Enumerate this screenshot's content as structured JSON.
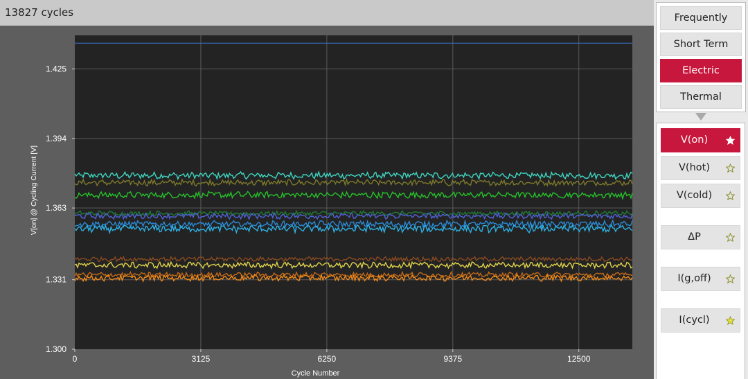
{
  "header": {
    "cycles_label": "13827 cycles"
  },
  "categories": [
    {
      "label": "Frequently Used",
      "active": false
    },
    {
      "label": "Short Term",
      "active": false
    },
    {
      "label": "Electric",
      "active": true
    },
    {
      "label": "Thermal",
      "active": false
    }
  ],
  "parameters": [
    {
      "label": "V(on)",
      "active": true,
      "star": "filled-white"
    },
    {
      "label": "V(hot)",
      "active": false,
      "star": "outline"
    },
    {
      "label": "V(cold)",
      "active": false,
      "star": "outline"
    },
    {
      "label": "ΔP",
      "active": false,
      "star": "outline"
    },
    {
      "label": "I(g,off)",
      "active": false,
      "star": "outline"
    },
    {
      "label": "I(cycl)",
      "active": false,
      "star": "filled-yellow"
    }
  ],
  "colors": {
    "accent": "#c8173c",
    "plot_bg": "#232323",
    "panel_bg": "#5e5e5e"
  },
  "chart_data": {
    "type": "line",
    "xlabel": "Cycle Number",
    "ylabel": "V[on] @ Cycling Current [V]",
    "xlim": [
      0,
      13827
    ],
    "ylim": [
      1.3,
      1.44
    ],
    "xticks": [
      "0",
      "3125",
      "6250",
      "9375",
      "12500"
    ],
    "xtick_values": [
      0,
      3125,
      6250,
      9375,
      12500
    ],
    "yticks": [
      "1.300",
      "1.331",
      "1.363",
      "1.394",
      "1.425"
    ],
    "ytick_values": [
      1.3,
      1.331,
      1.363,
      1.394,
      1.425
    ],
    "grid": true,
    "series": [
      {
        "color": "#3a6fc4",
        "level": 1.4365,
        "noise": 0
      },
      {
        "color": "#3fd6c0",
        "level": 1.3775,
        "noise": 0.0013
      },
      {
        "color": "#7d7a2a",
        "level": 1.3743,
        "noise": 0.0012
      },
      {
        "color": "#27c22a",
        "level": 1.3688,
        "noise": 0.0013
      },
      {
        "color": "#1f7a35",
        "level": 1.3606,
        "noise": 0.0009
      },
      {
        "color": "#4f62d8",
        "level": 1.3594,
        "noise": 0.0011
      },
      {
        "color": "#2a8ad6",
        "level": 1.3558,
        "noise": 0.0013
      },
      {
        "color": "#2eb2e6",
        "level": 1.3537,
        "noise": 0.0014
      },
      {
        "color": "#8a4a22",
        "level": 1.3402,
        "noise": 0.0009
      },
      {
        "color": "#e0d24a",
        "level": 1.3375,
        "noise": 0.0012
      },
      {
        "color": "#c26a1a",
        "level": 1.3332,
        "noise": 0.001
      },
      {
        "color": "#f08a1a",
        "level": 1.3318,
        "noise": 0.0012
      }
    ]
  }
}
